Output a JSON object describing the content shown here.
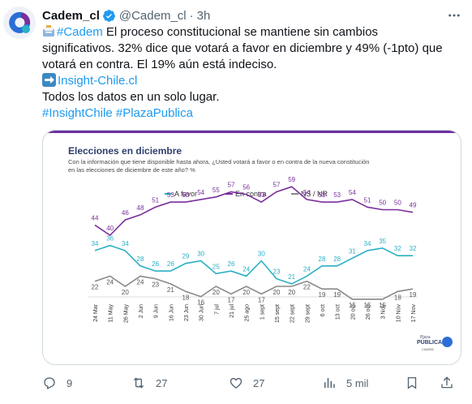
{
  "author": {
    "name": "Cadem_cl",
    "handle": "@Cadem_cl",
    "separator": "·",
    "time": "3h"
  },
  "tweet": {
    "line1_tag": "#Cadem",
    "line1_rest": " El proceso constitucional se mantiene sin cambios",
    "line2": "significativos. 32% dice que votará a favor en diciembre y 49% (-1pto) que",
    "line3": "votará en contra. El 19% aún está indeciso.",
    "link": "Insight-Chile.cl",
    "line5": "Todos los datos en un solo lugar.",
    "tag1": "#InsightChile",
    "tag2": "#PlazaPublica"
  },
  "card": {
    "brand_top": "Plaza",
    "brand_main": "PÚBLICA",
    "brand_sub": "CADEM"
  },
  "chart_data": {
    "type": "line",
    "title": "Elecciones en diciembre",
    "subtitle_line1": "Con la información que tiene disponible hasta ahora, ¿Usted votará a favor o en contra de la nueva constitución",
    "subtitle_line2": "en las elecciones de diciembre de este año? %",
    "legend_position": "top",
    "grid": false,
    "categories": [
      "24 Mar",
      "11 May",
      "26 May",
      "2 Jun",
      "9 Jun",
      "16 Jun",
      "23 Jun",
      "30 Jun",
      "7 jul",
      "21 jul",
      "25 ago",
      "1 sept",
      "15 sept",
      "22 sept",
      "29 sept",
      "6 oct",
      "13 oct",
      "20 oct",
      "26 oct",
      "3 Nov",
      "10 Nov",
      "17 Nov"
    ],
    "series": [
      {
        "name": "A favor",
        "color": "#2ab0c5",
        "values": [
          34,
          36,
          34,
          28,
          26,
          26,
          29,
          30,
          25,
          26,
          24,
          30,
          23,
          21,
          24,
          28,
          28,
          31,
          34,
          35,
          32,
          32
        ]
      },
      {
        "name": "En contra",
        "color": "#7a2e9c",
        "values": [
          44,
          40,
          46,
          48,
          51,
          53,
          53,
          54,
          55,
          57,
          56,
          53,
          57,
          59,
          54,
          53,
          53,
          54,
          51,
          50,
          50,
          49
        ]
      },
      {
        "name": "NS / NR",
        "color": "#8a8a8a",
        "values": [
          22,
          24,
          20,
          24,
          23,
          21,
          18,
          16,
          20,
          17,
          20,
          17,
          20,
          20,
          22,
          19,
          19,
          15,
          15,
          15,
          18,
          19
        ]
      }
    ]
  },
  "actions": {
    "replies": "9",
    "retweets": "27",
    "likes": "27",
    "views": "5 mil"
  },
  "colors": {
    "link_blue": "#1d9bf0",
    "text": "#0f1419",
    "muted": "#536471",
    "border": "#cfd9de"
  },
  "icons": [
    "verified-badge-icon",
    "more-icon",
    "reply-icon",
    "retweet-icon",
    "like-icon",
    "views-icon",
    "bookmark-icon",
    "share-icon",
    "newspaper-emoji",
    "right-arrow-emoji"
  ]
}
